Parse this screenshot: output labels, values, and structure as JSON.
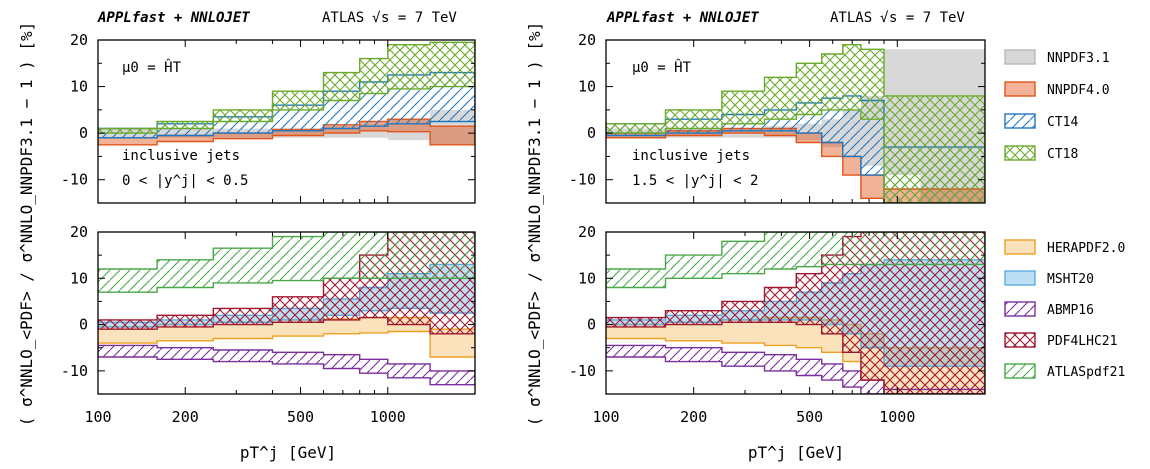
{
  "header": {
    "left_tool": "APPLfast + NNLOJET",
    "left_exp": "ATLAS",
    "left_energy": "s = 7 TeV",
    "right_tool": "APPLfast + NNLOJET",
    "right_exp": "ATLAS",
    "right_energy": "s = 7 TeV"
  },
  "annotations": {
    "scale_left": "μ0 = ĤT",
    "scale_right": "μ0 = ĤT",
    "process_left": "inclusive jets",
    "range_left": "0 < |y^j| < 0.5",
    "process_right": "inclusive jets",
    "range_right": "1.5 < |y^j| < 2"
  },
  "axes": {
    "ylabel": "( σ^NNLO_<PDF> / σ^NNLO_NNPDF3.1 − 1 ) [%]",
    "xlabel": "pT^j [GeV]",
    "xticks": [
      "100",
      "200",
      "500",
      "1000"
    ],
    "yticks": [
      "20",
      "10",
      "0",
      "-10"
    ]
  },
  "legend": {
    "top": [
      "NNPDF3.1",
      "NNPDF4.0",
      "CT14",
      "CT18"
    ],
    "bottom": [
      "HERAPDF2.0",
      "MSHT20",
      "ABMP16",
      "PDF4LHC21",
      "ATLASpdf21"
    ]
  },
  "colors": {
    "NNPDF3.1": "#b8b8b8",
    "NNPDF4.0": "#e0551b",
    "CT14": "#1f77c4",
    "CT18": "#6aaa2a",
    "HERAPDF2.0": "#f0a020",
    "MSHT20": "#5aaee0",
    "ABMP16": "#7b2f9c",
    "PDF4LHC21": "#a01830",
    "ATLASpdf21": "#4aa84a"
  },
  "chart_data": [
    {
      "type": "area",
      "title": "APPLfast + NNLOJET   ATLAS √s = 7 TeV",
      "subtitle": "μ0 = ĤT, inclusive jets, 0 < |y^j| < 0.5",
      "xlabel": "pT^j [GeV]",
      "ylabel": "( σ^NNLO_<PDF> / σ^NNLO_NNPDF3.1 − 1 ) [%]",
      "xscale": "log",
      "xlim": [
        100,
        2000
      ],
      "ylim": [
        -15,
        20
      ],
      "x": [
        100,
        160,
        250,
        400,
        600,
        800,
        1000,
        1400,
        2000
      ],
      "series": [
        {
          "name": "NNPDF3.1",
          "lo": [
            -1,
            -1,
            -1,
            -1,
            -1,
            -1,
            -1.5,
            -2.5,
            -3
          ],
          "hi": [
            1,
            1,
            1,
            1,
            1.5,
            2,
            3,
            5,
            6
          ]
        },
        {
          "name": "NNPDF4.0",
          "lo": [
            -2.5,
            -1.8,
            -1.2,
            -0.5,
            0,
            0.5,
            0.3,
            -2.5,
            -5.5
          ],
          "hi": [
            -1,
            -0.5,
            0,
            0.8,
            1.8,
            2.5,
            3,
            1.5,
            -1
          ]
        },
        {
          "name": "CT14",
          "lo": [
            -1,
            -0.5,
            0,
            0.5,
            1,
            1.5,
            2,
            2.5,
            2.5
          ],
          "hi": [
            1,
            2,
            3.5,
            6,
            9,
            11,
            12.5,
            13,
            13
          ]
        },
        {
          "name": "CT18",
          "lo": [
            0,
            1,
            2.5,
            5,
            7,
            8.5,
            9.5,
            10,
            10.5
          ],
          "hi": [
            1,
            2.5,
            5,
            9,
            13,
            16,
            19,
            19.5,
            20
          ]
        }
      ]
    },
    {
      "type": "area",
      "title": "",
      "subtitle": "",
      "xlabel": "pT^j [GeV]",
      "ylabel": "",
      "xscale": "log",
      "xlim": [
        100,
        2000
      ],
      "ylim": [
        -15,
        20
      ],
      "x": [
        100,
        160,
        250,
        400,
        600,
        800,
        1000,
        1400,
        2000
      ],
      "series": [
        {
          "name": "HERAPDF2.0",
          "lo": [
            -4,
            -3.5,
            -3,
            -2.5,
            -2,
            -1.8,
            -1.5,
            -7,
            -7
          ],
          "hi": [
            -0.5,
            0,
            0.5,
            1,
            1.2,
            1.5,
            1.5,
            -1,
            -1
          ]
        },
        {
          "name": "MSHT20",
          "lo": [
            -0.5,
            0,
            0.5,
            1,
            2,
            3,
            3.5,
            2.5,
            2.5
          ],
          "hi": [
            0.5,
            1,
            2,
            3.5,
            5.5,
            8,
            11,
            13,
            15
          ]
        },
        {
          "name": "ABMP16",
          "lo": [
            -7,
            -7.5,
            -8,
            -8.5,
            -9.5,
            -10.5,
            -11.5,
            -13,
            -13
          ],
          "hi": [
            -4.5,
            -5,
            -5.5,
            -6,
            -6.5,
            -7.5,
            -8.5,
            -10,
            -10.5
          ]
        },
        {
          "name": "PDF4LHC21",
          "lo": [
            -1,
            -0.5,
            0,
            0.5,
            1,
            1.5,
            0,
            -2,
            -3
          ],
          "hi": [
            1,
            2,
            3.5,
            6,
            10,
            15,
            20,
            20,
            20
          ]
        },
        {
          "name": "ATLASpdf21",
          "lo": [
            7,
            8,
            9,
            9.5,
            10,
            10,
            10,
            10,
            10
          ],
          "hi": [
            12,
            14,
            16.5,
            19,
            20,
            20,
            20,
            20,
            20
          ]
        }
      ]
    },
    {
      "type": "area",
      "title": "APPLfast + NNLOJET   ATLAS √s = 7 TeV",
      "subtitle": "μ0 = ĤT, inclusive jets, 1.5 < |y^j| < 2",
      "xlabel": "pT^j [GeV]",
      "ylabel": "",
      "xscale": "log",
      "xlim": [
        100,
        2000
      ],
      "ylim": [
        -15,
        20
      ],
      "x": [
        100,
        160,
        250,
        350,
        450,
        550,
        650,
        750,
        900,
        1200,
        2000
      ],
      "series": [
        {
          "name": "NNPDF3.1",
          "lo": [
            -1,
            -1,
            -1,
            -1,
            -1.5,
            -3,
            -5,
            -7,
            -9,
            -15,
            -15
          ],
          "hi": [
            1,
            1,
            1,
            1.5,
            2,
            3,
            5,
            8,
            18,
            18,
            18
          ]
        },
        {
          "name": "NNPDF4.0",
          "lo": [
            -1,
            -0.5,
            0,
            -0.5,
            -2,
            -5,
            -9,
            -14,
            -15,
            -15,
            -15
          ],
          "hi": [
            0,
            0.5,
            1,
            1,
            0,
            -2,
            -5,
            -9,
            -12,
            -12,
            -12
          ]
        },
        {
          "name": "CT14",
          "lo": [
            -0.5,
            0,
            0.5,
            0.5,
            0,
            -2,
            -5,
            -9,
            -15,
            -15,
            -15
          ],
          "hi": [
            2,
            3,
            4,
            5,
            6.5,
            7.5,
            8,
            7,
            -3,
            -3,
            -3
          ]
        },
        {
          "name": "CT18",
          "lo": [
            0,
            1,
            2,
            3,
            4,
            5,
            5,
            3,
            -15,
            -15,
            -15
          ],
          "hi": [
            2,
            5,
            9,
            12,
            15,
            17,
            19,
            18,
            8,
            8,
            8
          ]
        }
      ]
    },
    {
      "type": "area",
      "title": "",
      "subtitle": "",
      "xlabel": "pT^j [GeV]",
      "ylabel": "",
      "xscale": "log",
      "xlim": [
        100,
        2000
      ],
      "ylim": [
        -15,
        20
      ],
      "x": [
        100,
        160,
        250,
        350,
        450,
        550,
        650,
        750,
        900,
        1200,
        2000
      ],
      "series": [
        {
          "name": "HERAPDF2.0",
          "lo": [
            -3,
            -3.5,
            -4,
            -4.5,
            -5,
            -6,
            -8,
            -12,
            -15,
            -15,
            -15
          ],
          "hi": [
            0,
            0.5,
            1,
            1.5,
            1.5,
            1,
            0,
            -2,
            -5,
            -5,
            -5
          ]
        },
        {
          "name": "MSHT20",
          "lo": [
            0,
            0.5,
            1,
            1,
            1,
            0,
            -2,
            -5,
            -9,
            -9,
            -9
          ],
          "hi": [
            1,
            2,
            3,
            5,
            7,
            9,
            11,
            13,
            14,
            14,
            14
          ]
        },
        {
          "name": "ABMP16",
          "lo": [
            -7,
            -8,
            -9,
            -10,
            -11,
            -12,
            -13.5,
            -15,
            -15,
            -15,
            -15
          ],
          "hi": [
            -4.5,
            -5,
            -6,
            -6.5,
            -7.5,
            -8.5,
            -10,
            -12,
            -14,
            -14,
            -14
          ]
        },
        {
          "name": "PDF4LHC21",
          "lo": [
            -0.5,
            0,
            0.5,
            0.5,
            0,
            -2,
            -6,
            -12,
            -15,
            -15,
            -15
          ],
          "hi": [
            1.5,
            3,
            5,
            8,
            11,
            15,
            19,
            20,
            20,
            20,
            20
          ]
        },
        {
          "name": "ATLASpdf21",
          "lo": [
            8,
            10,
            11,
            12,
            12.5,
            13,
            13,
            13,
            13,
            13,
            13
          ],
          "hi": [
            12,
            15,
            18,
            20,
            20,
            20,
            20,
            20,
            20,
            20,
            20
          ]
        }
      ]
    }
  ]
}
